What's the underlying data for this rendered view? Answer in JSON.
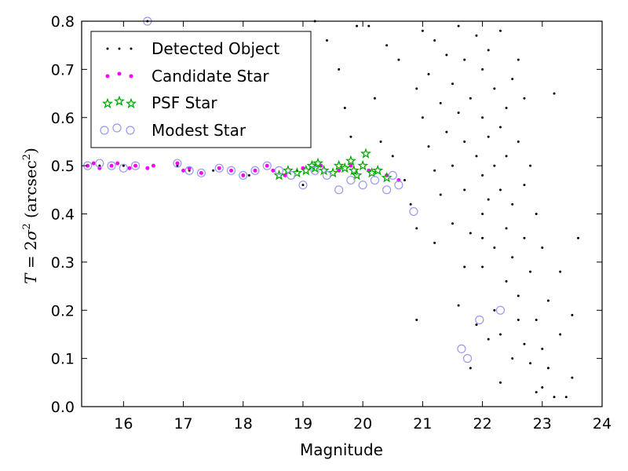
{
  "chart_data": {
    "type": "scatter",
    "xlabel": "Magnitude",
    "ylabel": {
      "lhs": "T",
      "eq": " = 2",
      "sigma": "σ",
      "sup": "2",
      "unit_open": " (arcsec",
      "unit_close": ")"
    },
    "xlim": [
      15.3,
      24
    ],
    "ylim": [
      0,
      0.8
    ],
    "xticks": [
      16,
      17,
      18,
      19,
      20,
      21,
      22,
      23,
      24
    ],
    "yticks": [
      0.0,
      0.1,
      0.2,
      0.3,
      0.4,
      0.5,
      0.6,
      0.7,
      0.8
    ],
    "grid": false,
    "legend": {
      "placement": "upper-left"
    },
    "series": [
      {
        "name": "Detected Object",
        "marker": "dot",
        "color": "#000000",
        "points": [
          [
            15.4,
            0.5
          ],
          [
            15.6,
            0.5
          ],
          [
            15.8,
            0.5
          ],
          [
            16.0,
            0.5
          ],
          [
            16.2,
            0.5
          ],
          [
            16.4,
            0.8
          ],
          [
            16.9,
            0.5
          ],
          [
            17.1,
            0.49
          ],
          [
            17.5,
            0.49
          ],
          [
            17.8,
            0.49
          ],
          [
            18.1,
            0.48
          ],
          [
            18.5,
            0.49
          ],
          [
            18.7,
            0.48
          ],
          [
            18.9,
            0.49
          ],
          [
            19.0,
            0.46
          ],
          [
            19.2,
            0.8
          ],
          [
            19.4,
            0.76
          ],
          [
            19.6,
            0.7
          ],
          [
            19.7,
            0.62
          ],
          [
            19.8,
            0.56
          ],
          [
            19.9,
            0.79
          ],
          [
            20.1,
            0.79
          ],
          [
            20.2,
            0.64
          ],
          [
            20.3,
            0.55
          ],
          [
            20.4,
            0.75
          ],
          [
            20.5,
            0.52
          ],
          [
            20.6,
            0.72
          ],
          [
            20.7,
            0.47
          ],
          [
            20.8,
            0.42
          ],
          [
            20.9,
            0.66
          ],
          [
            20.9,
            0.37
          ],
          [
            20.9,
            0.18
          ],
          [
            21.0,
            0.78
          ],
          [
            21.0,
            0.6
          ],
          [
            21.1,
            0.54
          ],
          [
            21.1,
            0.69
          ],
          [
            21.2,
            0.49
          ],
          [
            21.2,
            0.76
          ],
          [
            21.3,
            0.63
          ],
          [
            21.3,
            0.44
          ],
          [
            21.4,
            0.57
          ],
          [
            21.4,
            0.73
          ],
          [
            21.5,
            0.5
          ],
          [
            21.5,
            0.38
          ],
          [
            21.5,
            0.67
          ],
          [
            21.6,
            0.79
          ],
          [
            21.6,
            0.61
          ],
          [
            21.6,
            0.21
          ],
          [
            21.7,
            0.45
          ],
          [
            21.7,
            0.55
          ],
          [
            21.7,
            0.72
          ],
          [
            21.8,
            0.36
          ],
          [
            21.8,
            0.64
          ],
          [
            21.8,
            0.08
          ],
          [
            21.9,
            0.52
          ],
          [
            21.9,
            0.77
          ],
          [
            21.9,
            0.17
          ],
          [
            22.0,
            0.4
          ],
          [
            22.0,
            0.6
          ],
          [
            22.0,
            0.7
          ],
          [
            22.0,
            0.48
          ],
          [
            22.0,
            0.29
          ],
          [
            22.1,
            0.56
          ],
          [
            22.1,
            0.74
          ],
          [
            22.1,
            0.43
          ],
          [
            22.1,
            0.14
          ],
          [
            22.2,
            0.5
          ],
          [
            22.2,
            0.66
          ],
          [
            22.2,
            0.33
          ],
          [
            22.2,
            0.2
          ],
          [
            22.3,
            0.58
          ],
          [
            22.3,
            0.45
          ],
          [
            22.3,
            0.78
          ],
          [
            22.3,
            0.05
          ],
          [
            22.4,
            0.37
          ],
          [
            22.4,
            0.62
          ],
          [
            22.4,
            0.52
          ],
          [
            22.4,
            0.26
          ],
          [
            22.5,
            0.68
          ],
          [
            22.5,
            0.42
          ],
          [
            22.5,
            0.1
          ],
          [
            22.5,
            0.31
          ],
          [
            22.6,
            0.55
          ],
          [
            22.6,
            0.72
          ],
          [
            22.6,
            0.23
          ],
          [
            22.7,
            0.46
          ],
          [
            22.7,
            0.64
          ],
          [
            22.7,
            0.35
          ],
          [
            22.7,
            0.13
          ],
          [
            22.8,
            0.28
          ],
          [
            22.8,
            0.5
          ],
          [
            22.9,
            0.4
          ],
          [
            22.9,
            0.18
          ],
          [
            22.9,
            0.03
          ],
          [
            23.0,
            0.33
          ],
          [
            23.0,
            0.12
          ],
          [
            23.0,
            0.04
          ],
          [
            23.1,
            0.22
          ],
          [
            23.2,
            0.65
          ],
          [
            23.2,
            0.02
          ],
          [
            23.3,
            0.28
          ],
          [
            23.3,
            0.15
          ],
          [
            23.4,
            0.02
          ],
          [
            23.5,
            0.19
          ],
          [
            23.6,
            0.35
          ],
          [
            23.5,
            0.06
          ],
          [
            21.2,
            0.34
          ],
          [
            21.7,
            0.29
          ],
          [
            22.0,
            0.35
          ],
          [
            22.3,
            0.15
          ],
          [
            22.6,
            0.18
          ],
          [
            22.8,
            0.09
          ],
          [
            23.1,
            0.08
          ]
        ]
      },
      {
        "name": "Candidate Star",
        "marker": "circle-small",
        "color": "#ff00ff",
        "points": [
          [
            15.4,
            0.5
          ],
          [
            15.5,
            0.505
          ],
          [
            15.6,
            0.495
          ],
          [
            15.8,
            0.5
          ],
          [
            15.9,
            0.505
          ],
          [
            16.1,
            0.495
          ],
          [
            16.2,
            0.5
          ],
          [
            16.4,
            0.495
          ],
          [
            16.5,
            0.5
          ],
          [
            16.9,
            0.505
          ],
          [
            17.0,
            0.49
          ],
          [
            17.1,
            0.495
          ],
          [
            17.3,
            0.485
          ],
          [
            17.6,
            0.495
          ],
          [
            17.8,
            0.49
          ],
          [
            18.0,
            0.48
          ],
          [
            18.2,
            0.49
          ],
          [
            18.4,
            0.5
          ],
          [
            18.5,
            0.49
          ],
          [
            18.7,
            0.48
          ],
          [
            19.0,
            0.495
          ],
          [
            19.3,
            0.5
          ],
          [
            19.6,
            0.49
          ],
          [
            19.8,
            0.5
          ],
          [
            20.1,
            0.49
          ],
          [
            20.4,
            0.48
          ],
          [
            20.6,
            0.47
          ]
        ]
      },
      {
        "name": "PSF Star",
        "marker": "star",
        "color": "#00aa00",
        "points": [
          [
            18.6,
            0.48
          ],
          [
            18.75,
            0.49
          ],
          [
            18.9,
            0.485
          ],
          [
            19.05,
            0.49
          ],
          [
            19.15,
            0.5
          ],
          [
            19.2,
            0.495
          ],
          [
            19.25,
            0.505
          ],
          [
            19.35,
            0.49
          ],
          [
            19.5,
            0.485
          ],
          [
            19.6,
            0.5
          ],
          [
            19.7,
            0.495
          ],
          [
            19.8,
            0.51
          ],
          [
            19.85,
            0.49
          ],
          [
            19.9,
            0.48
          ],
          [
            20.0,
            0.5
          ],
          [
            20.05,
            0.525
          ],
          [
            20.15,
            0.485
          ],
          [
            20.25,
            0.49
          ],
          [
            20.4,
            0.475
          ]
        ]
      },
      {
        "name": "Modest Star",
        "marker": "circle-open",
        "color": "#9999ee",
        "points": [
          [
            15.4,
            0.5
          ],
          [
            15.6,
            0.505
          ],
          [
            15.8,
            0.5
          ],
          [
            16.0,
            0.495
          ],
          [
            16.2,
            0.5
          ],
          [
            16.4,
            0.8
          ],
          [
            16.9,
            0.505
          ],
          [
            17.1,
            0.49
          ],
          [
            17.3,
            0.485
          ],
          [
            17.6,
            0.495
          ],
          [
            17.8,
            0.49
          ],
          [
            18.0,
            0.48
          ],
          [
            18.2,
            0.49
          ],
          [
            18.4,
            0.5
          ],
          [
            18.6,
            0.49
          ],
          [
            18.8,
            0.48
          ],
          [
            19.0,
            0.46
          ],
          [
            19.2,
            0.49
          ],
          [
            19.4,
            0.48
          ],
          [
            19.6,
            0.45
          ],
          [
            19.8,
            0.47
          ],
          [
            20.0,
            0.46
          ],
          [
            20.2,
            0.47
          ],
          [
            20.4,
            0.45
          ],
          [
            20.5,
            0.48
          ],
          [
            20.6,
            0.46
          ],
          [
            20.85,
            0.405
          ],
          [
            21.65,
            0.12
          ],
          [
            21.75,
            0.1
          ],
          [
            21.95,
            0.18
          ],
          [
            22.3,
            0.2
          ]
        ]
      }
    ]
  }
}
